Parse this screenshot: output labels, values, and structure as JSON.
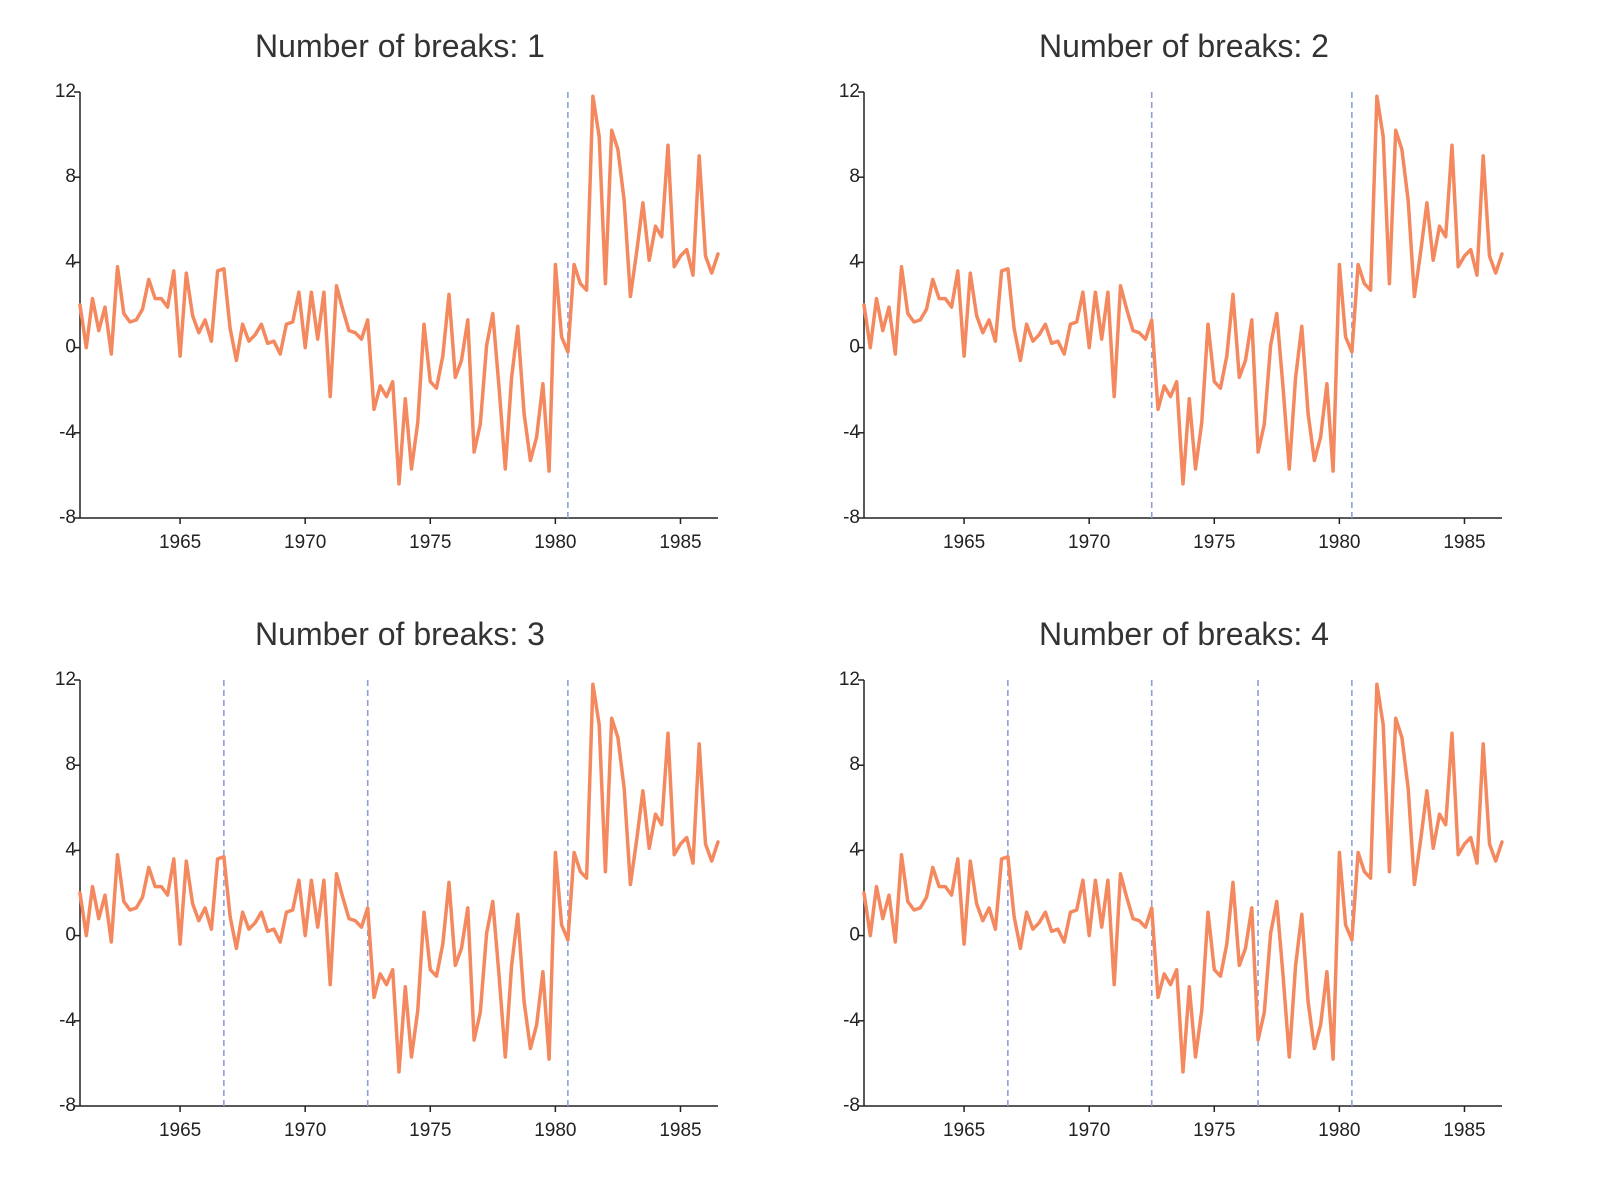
{
  "chart_data": {
    "type": "line",
    "layout": "2x2 small multiples",
    "line_color": "#f4895f",
    "break_color": "#8d9fdb",
    "x_range": [
      1961.0,
      1986.5
    ],
    "ylim": [
      -8,
      12
    ],
    "y_ticks": [
      12,
      8,
      4,
      0,
      -4,
      -8
    ],
    "y_tick_labels": [
      "12",
      "8",
      "4",
      "0",
      "-4",
      "-8"
    ],
    "x_ticks": [
      1965,
      1970,
      1975,
      1980,
      1985
    ],
    "x_tick_labels": [
      "1965",
      "1970",
      "1975",
      "1980",
      "1985"
    ],
    "series": {
      "name": "series",
      "x_start": 1961.0,
      "x_step": 0.25,
      "values": [
        2.0,
        0.0,
        2.3,
        0.8,
        1.9,
        -0.3,
        3.8,
        1.6,
        1.2,
        1.3,
        1.8,
        3.2,
        2.3,
        2.3,
        1.9,
        3.6,
        -0.4,
        3.5,
        1.5,
        0.7,
        1.3,
        0.3,
        3.6,
        3.7,
        0.9,
        -0.6,
        1.1,
        0.3,
        0.6,
        1.1,
        0.2,
        0.3,
        -0.3,
        1.1,
        1.2,
        2.6,
        0.0,
        2.6,
        0.4,
        2.6,
        -2.3,
        2.9,
        1.8,
        0.8,
        0.7,
        0.4,
        1.3,
        -2.9,
        -1.8,
        -2.3,
        -1.6,
        -6.4,
        -2.4,
        -5.7,
        -3.5,
        1.1,
        -1.6,
        -1.9,
        -0.4,
        2.5,
        -1.4,
        -0.6,
        1.3,
        -4.9,
        -3.6,
        0.1,
        1.6,
        -1.9,
        -5.7,
        -1.4,
        1.0,
        -3.1,
        -5.3,
        -4.2,
        -1.7,
        -5.8,
        3.9,
        0.5,
        -0.2,
        3.9,
        3.0,
        2.7,
        11.8,
        9.9,
        3.0,
        10.2,
        9.3,
        6.9,
        2.4,
        4.5,
        6.8,
        4.1,
        5.7,
        5.2,
        9.5,
        3.8,
        4.3,
        4.6,
        3.4,
        9.0,
        4.3,
        3.5,
        4.4
      ]
    },
    "panels": [
      {
        "title": "Number of breaks: 1",
        "breaks": [
          1980.5
        ]
      },
      {
        "title": "Number of breaks: 2",
        "breaks": [
          1972.5,
          1980.5
        ]
      },
      {
        "title": "Number of breaks: 3",
        "breaks": [
          1966.75,
          1972.5,
          1980.5
        ]
      },
      {
        "title": "Number of breaks: 4",
        "breaks": [
          1966.75,
          1972.5,
          1976.75,
          1980.5
        ]
      }
    ]
  }
}
